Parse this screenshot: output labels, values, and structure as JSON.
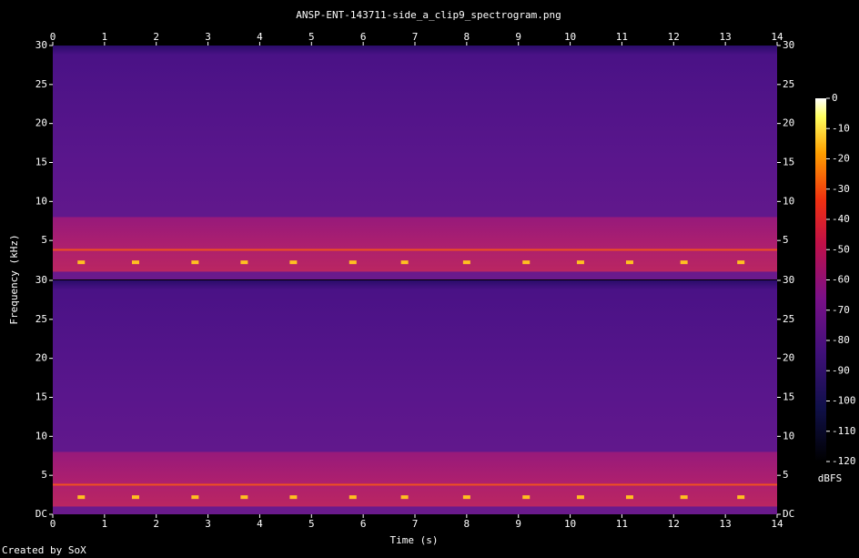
{
  "chart_data": {
    "type": "spectrogram",
    "title": "ANSP-ENT-143711-side_a_clip9_spectrogram.png",
    "xlabel": "Time (s)",
    "ylabel": "Frequency (kHz)",
    "footer": "Created by SoX",
    "xlim": [
      0,
      14
    ],
    "xticks": [
      0,
      1,
      2,
      3,
      4,
      5,
      6,
      7,
      8,
      9,
      10,
      11,
      12,
      13,
      14
    ],
    "ylim": [
      0,
      30
    ],
    "yticks": [
      {
        "value": 0,
        "label": "DC"
      },
      5,
      10,
      15,
      20,
      25,
      30
    ],
    "emission_band": [
      1,
      8
    ],
    "tone_khz": 3.8,
    "colorbar": {
      "label": "dBFS",
      "lim": [
        -120,
        0
      ],
      "ticks": [
        -120,
        -110,
        -100,
        -90,
        -80,
        -70,
        -60,
        -50,
        -40,
        -30,
        -20,
        -10,
        0
      ]
    },
    "channels": [
      {
        "x": [
          0.55,
          1.6,
          2.75,
          3.7,
          4.65,
          5.8,
          6.8,
          8.0,
          9.15,
          10.2,
          11.15,
          12.2,
          13.3
        ],
        "y": [
          2.2,
          2.2,
          2.2,
          2.2,
          2.2,
          2.2,
          2.2,
          2.2,
          2.2,
          2.2,
          2.2,
          2.2,
          2.2
        ]
      },
      {
        "x": [
          0.55,
          1.6,
          2.75,
          3.7,
          4.65,
          5.8,
          6.8,
          8.0,
          9.15,
          10.2,
          11.15,
          12.2,
          13.3
        ],
        "y": [
          2.2,
          2.2,
          2.2,
          2.2,
          2.2,
          2.2,
          2.2,
          2.2,
          2.2,
          2.2,
          2.2,
          2.2,
          2.2
        ]
      }
    ]
  }
}
